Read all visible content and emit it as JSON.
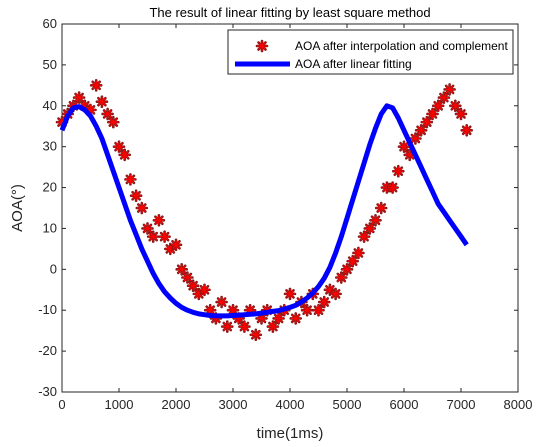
{
  "chart_data": {
    "type": "scatter",
    "title": "The result of linear fitting by least square method",
    "xlabel": "time(1ms)",
    "ylabel": "AOA(°)",
    "xlim": [
      0,
      8000
    ],
    "ylim": [
      -30,
      60
    ],
    "xticks": [
      0,
      1000,
      2000,
      3000,
      4000,
      5000,
      6000,
      7000,
      8000
    ],
    "yticks": [
      -30,
      -20,
      -10,
      0,
      10,
      20,
      30,
      40,
      50,
      60
    ],
    "grid": false,
    "legend_position": "top-right",
    "series": [
      {
        "name": "AOA after interpolation and complement",
        "marker": "asterisk",
        "color": "#ff0000",
        "outline_color": "#8b1a1a",
        "x": [
          0,
          100,
          200,
          300,
          400,
          500,
          600,
          700,
          800,
          900,
          1000,
          1100,
          1200,
          1300,
          1400,
          1500,
          1600,
          1700,
          1800,
          1900,
          2000,
          2100,
          2200,
          2300,
          2400,
          2500,
          2600,
          2700,
          2800,
          2900,
          3000,
          3100,
          3200,
          3300,
          3400,
          3500,
          3600,
          3700,
          3800,
          3900,
          4000,
          4100,
          4200,
          4300,
          4400,
          4500,
          4600,
          4700,
          4800,
          4900,
          5000,
          5100,
          5200,
          5300,
          5400,
          5500,
          5600,
          5700,
          5800,
          5900,
          6000,
          6100,
          6200,
          6300,
          6400,
          6500,
          6600,
          6700,
          6800,
          6900,
          7000,
          7100
        ],
        "y": [
          36,
          38,
          40,
          42,
          40,
          39,
          45,
          41,
          38,
          36,
          30,
          28,
          22,
          18,
          15,
          10,
          8,
          12,
          8,
          5,
          6,
          0,
          -2,
          -4,
          -6,
          -5,
          -10,
          -12,
          -8,
          -14,
          -10,
          -12,
          -14,
          -10,
          -16,
          -12,
          -10,
          -14,
          -12,
          -10,
          -6,
          -12,
          -8,
          -10,
          -6,
          -10,
          -8,
          -5,
          -6,
          -2,
          0,
          2,
          4,
          8,
          10,
          12,
          15,
          20,
          20,
          24,
          30,
          28,
          32,
          34,
          36,
          38,
          40,
          42,
          44,
          40,
          38,
          34
        ]
      },
      {
        "name": "AOA after linear fitting",
        "line_color": "#0000ff",
        "x": [
          0,
          100,
          200,
          300,
          400,
          500,
          600,
          700,
          800,
          900,
          1000,
          1100,
          1200,
          1300,
          1400,
          1500,
          1600,
          1700,
          1800,
          1900,
          2000,
          2100,
          2200,
          2300,
          2400,
          2500,
          2600,
          2700,
          2800,
          2900,
          3000,
          3100,
          3200,
          3300,
          3400,
          3500,
          3600,
          3700,
          3800,
          3900,
          4000,
          4100,
          4200,
          4300,
          4400,
          4500,
          4600,
          4700,
          4800,
          4900,
          5000,
          5100,
          5200,
          5300,
          5400,
          5500,
          5600,
          5700,
          5800,
          5900,
          6000,
          6100,
          6200,
          6300,
          6400,
          6500,
          6600,
          6700,
          6800,
          6900,
          7000,
          7100
        ],
        "y": [
          34,
          37.5,
          39.5,
          39.8,
          39,
          37.5,
          35,
          32,
          28,
          24,
          20,
          16,
          12,
          8.5,
          5,
          2,
          -1,
          -3.5,
          -5.5,
          -7,
          -8.3,
          -9.3,
          -10,
          -10.5,
          -10.9,
          -11.1,
          -11.3,
          -11.4,
          -11.4,
          -11.4,
          -11.3,
          -11.2,
          -11.1,
          -11,
          -10.9,
          -10.7,
          -10.5,
          -10.3,
          -10.1,
          -9.7,
          -9.3,
          -8.8,
          -8,
          -7,
          -5.8,
          -4.2,
          -2.2,
          0.5,
          4,
          8,
          12.5,
          17,
          21.5,
          26,
          30.5,
          34.5,
          38,
          40,
          39.5,
          37,
          34,
          31,
          28,
          25,
          22,
          19,
          16,
          14,
          12,
          10,
          8,
          6
        ]
      }
    ]
  }
}
